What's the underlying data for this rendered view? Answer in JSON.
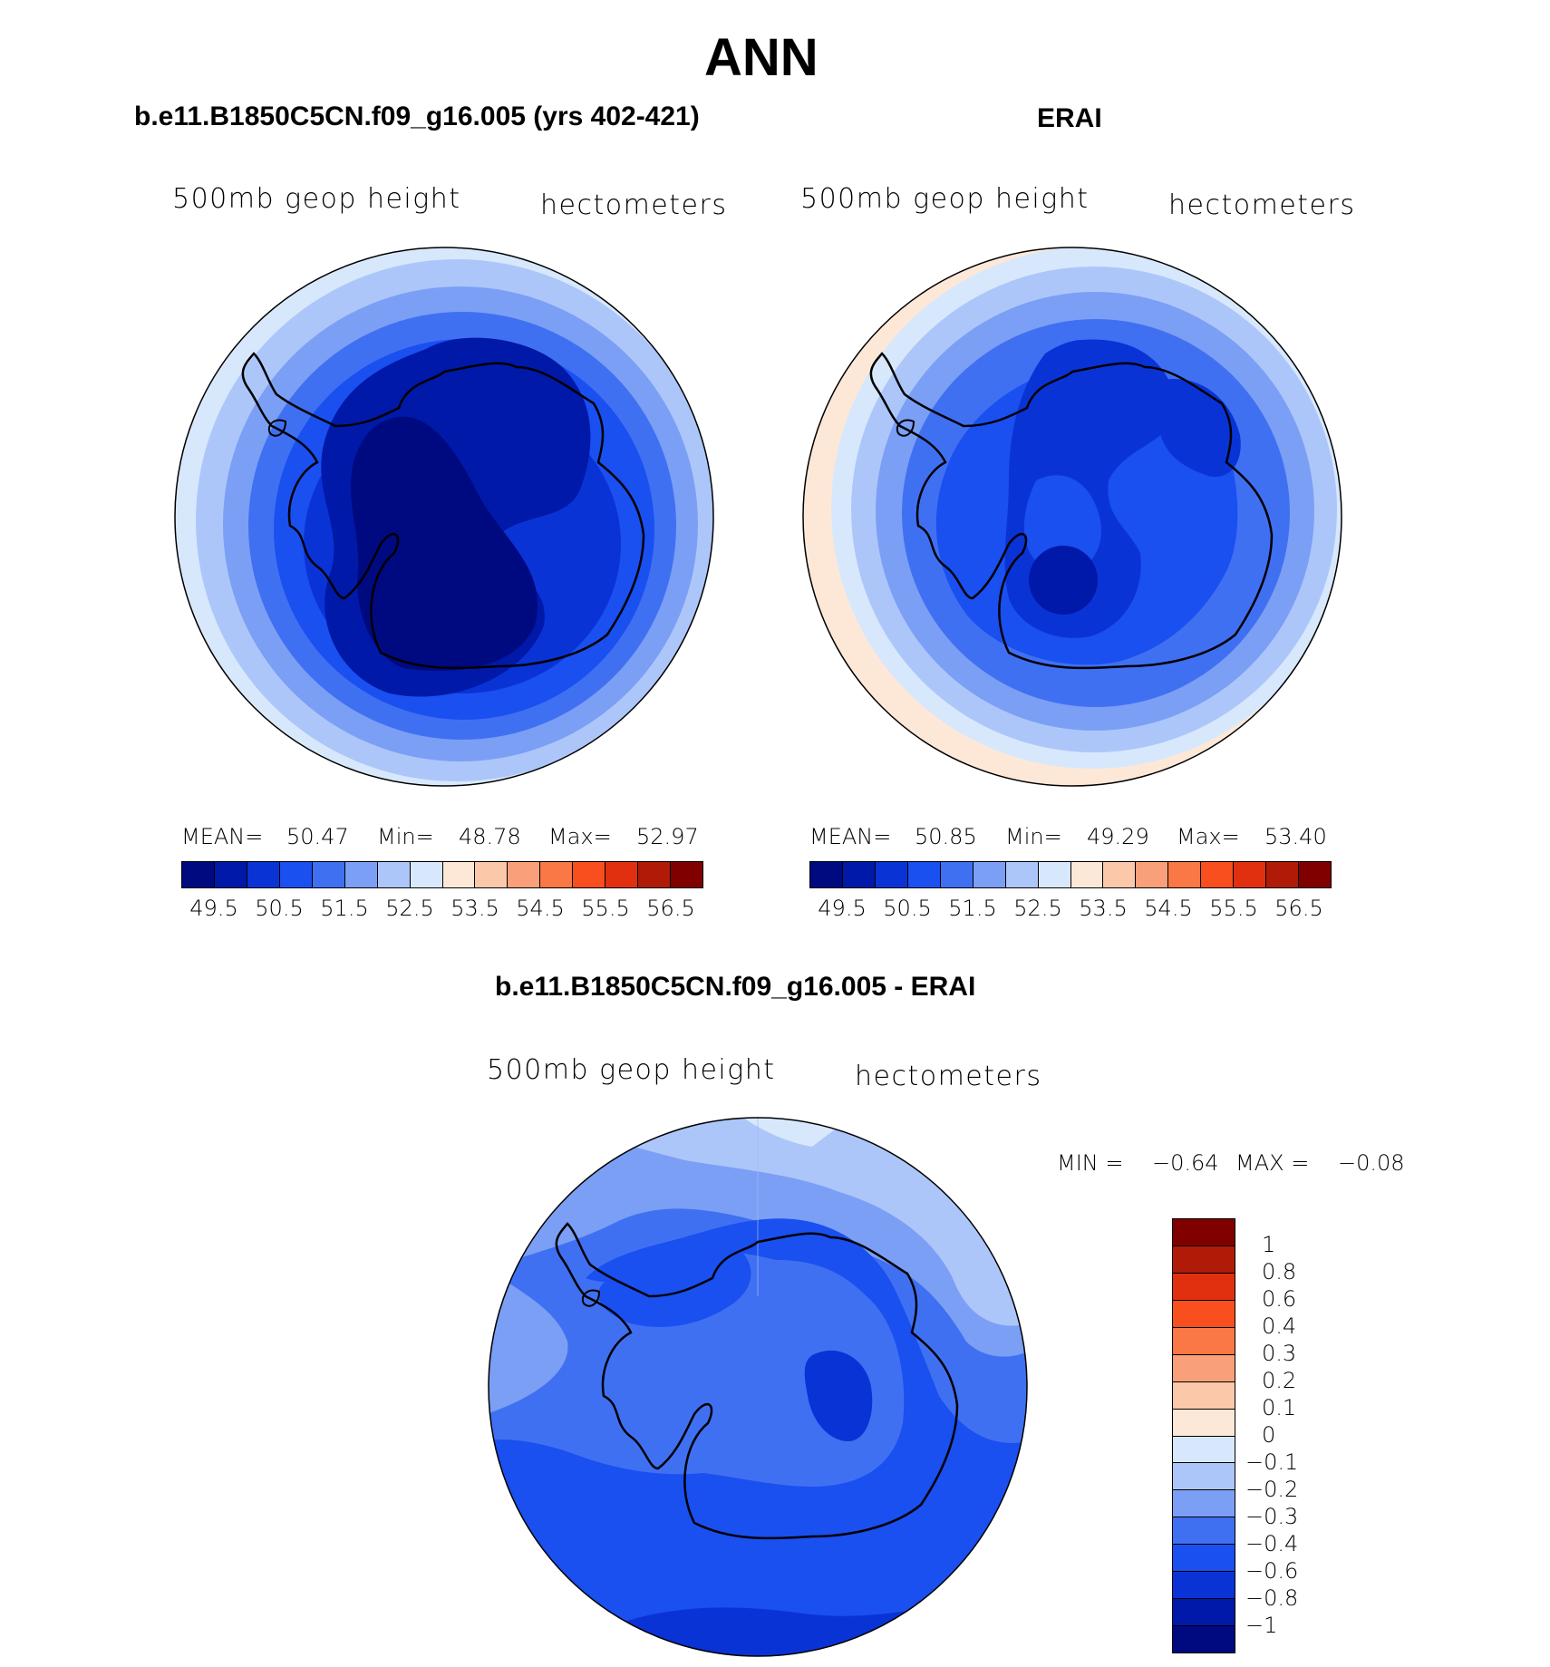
{
  "figure_title": "ANN",
  "panels": [
    {
      "title": "b.e11.B1850C5CN.f09_g16.005 (yrs 402-421)",
      "variable": "500mb geop height",
      "units": "hectometers",
      "stats": {
        "mean_label": "MEAN=",
        "mean": "50.47",
        "min_label": "Min=",
        "min": "48.78",
        "max_label": "Max=",
        "max": "52.97"
      }
    },
    {
      "title": "ERAI",
      "variable": "500mb geop height",
      "units": "hectometers",
      "stats": {
        "mean_label": "MEAN=",
        "mean": "50.85",
        "min_label": "Min=",
        "min": "49.29",
        "max_label": "Max=",
        "max": "53.40"
      }
    },
    {
      "title": "b.e11.B1850C5CN.f09_g16.005 - ERAI",
      "variable": "500mb geop height",
      "units": "hectometers",
      "stats": {
        "min_label": "MIN =",
        "min": "−0.64",
        "max_label": "MAX =",
        "max": "−0.08"
      }
    }
  ],
  "colorbar_abs": {
    "colors": [
      "#000a80",
      "#0019a8",
      "#0a33d6",
      "#1a4ff0",
      "#4070f2",
      "#7b9ff5",
      "#adc6fa",
      "#d8e8fc",
      "#fde8d8",
      "#fcc8aa",
      "#f9a07a",
      "#f97845",
      "#f94f1e",
      "#e03010",
      "#b01b08",
      "#800000"
    ],
    "ticks": [
      "49.5",
      "50.5",
      "51.5",
      "52.5",
      "53.5",
      "54.5",
      "55.5",
      "56.5"
    ]
  },
  "colorbar_diff": {
    "colors": [
      "#800000",
      "#b01b08",
      "#e03010",
      "#f94f1e",
      "#f97845",
      "#f9a07a",
      "#fcc8aa",
      "#fde8d8",
      "#d8e8fc",
      "#adc6fa",
      "#7b9ff5",
      "#4070f2",
      "#1a4ff0",
      "#0a33d6",
      "#0019a8",
      "#000a80"
    ],
    "ticks": [
      "1",
      "0.8",
      "0.6",
      "0.4",
      "0.3",
      "0.2",
      "0.1",
      "0",
      "−0.1",
      "−0.2",
      "−0.3",
      "−0.4",
      "−0.6",
      "−0.8",
      "−1"
    ]
  },
  "chart_data": [
    {
      "type": "heatmap",
      "title": "b.e11.B1850C5CN.f09_g16.005 (yrs 402-421)",
      "projection": "south polar stereographic",
      "variable": "500mb geop height",
      "units": "hectometers",
      "mean": 50.47,
      "min": 48.78,
      "max": 52.97,
      "contour_levels": [
        49.5,
        50,
        50.5,
        51,
        51.5,
        52,
        52.5,
        53,
        53.5,
        54,
        54.5,
        55,
        55.5,
        56,
        56.5
      ]
    },
    {
      "type": "heatmap",
      "title": "ERAI",
      "projection": "south polar stereographic",
      "variable": "500mb geop height",
      "units": "hectometers",
      "mean": 50.85,
      "min": 49.29,
      "max": 53.4,
      "contour_levels": [
        49.5,
        50,
        50.5,
        51,
        51.5,
        52,
        52.5,
        53,
        53.5,
        54,
        54.5,
        55,
        55.5,
        56,
        56.5
      ]
    },
    {
      "type": "heatmap",
      "title": "b.e11.B1850C5CN.f09_g16.005 - ERAI",
      "projection": "south polar stereographic",
      "variable": "500mb geop height",
      "units": "hectometers",
      "min": -0.64,
      "max": -0.08,
      "contour_levels": [
        -1,
        -0.8,
        -0.6,
        -0.4,
        -0.3,
        -0.2,
        -0.1,
        0,
        0.1,
        0.2,
        0.3,
        0.4,
        0.6,
        0.8,
        1
      ]
    }
  ]
}
